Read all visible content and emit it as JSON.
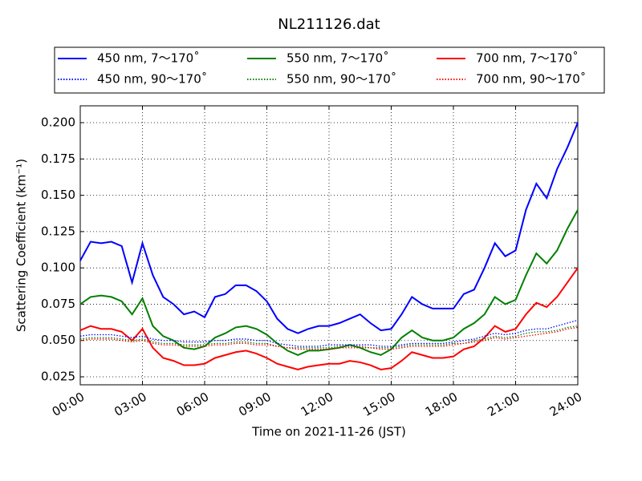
{
  "chart_data": {
    "type": "line",
    "title": "NL211126.dat",
    "x_label": "Time on 2021-11-26 (JST)",
    "y_label": "Scattering Coefficient (km⁻¹)",
    "x": [
      0,
      0.5,
      1,
      1.5,
      2,
      2.5,
      3,
      3.5,
      4,
      4.5,
      5,
      5.5,
      6,
      6.5,
      7,
      7.5,
      8,
      8.5,
      9,
      9.5,
      10,
      10.5,
      11,
      11.5,
      12,
      12.5,
      13,
      13.5,
      14,
      14.5,
      15,
      15.5,
      16,
      16.5,
      17,
      17.5,
      18,
      18.5,
      19,
      19.5,
      20,
      20.5,
      21,
      21.5,
      22,
      22.5,
      23,
      23.5,
      24
    ],
    "xlim": [
      0,
      24
    ],
    "xticks": [
      {
        "value": 0,
        "label": "00:00"
      },
      {
        "value": 3,
        "label": "03:00"
      },
      {
        "value": 6,
        "label": "06:00"
      },
      {
        "value": 9,
        "label": "09:00"
      },
      {
        "value": 12,
        "label": "12:00"
      },
      {
        "value": 15,
        "label": "15:00"
      },
      {
        "value": 18,
        "label": "18:00"
      },
      {
        "value": 21,
        "label": "21:00"
      },
      {
        "value": 24,
        "label": "24:00"
      }
    ],
    "ylim": [
      0.0195,
      0.2116
    ],
    "yticks": [
      0.025,
      {
        "value": 0.05,
        "label": "0.050"
      },
      0.075,
      {
        "value": 0.1,
        "label": "0.100"
      },
      0.125,
      {
        "value": 0.15,
        "label": "0.150"
      },
      0.175,
      {
        "value": 0.2,
        "label": "0.200"
      }
    ],
    "grid": true,
    "series": [
      {
        "name": "450 nm, 7～170˚",
        "color": "#0000ff",
        "linestyle": "solid",
        "values": [
          0.105,
          0.118,
          0.117,
          0.118,
          0.115,
          0.09,
          0.117,
          0.095,
          0.08,
          0.075,
          0.068,
          0.07,
          0.066,
          0.08,
          0.082,
          0.088,
          0.088,
          0.084,
          0.077,
          0.065,
          0.058,
          0.055,
          0.058,
          0.06,
          0.06,
          0.062,
          0.065,
          0.068,
          0.062,
          0.057,
          0.058,
          0.068,
          0.08,
          0.075,
          0.072,
          0.072,
          0.072,
          0.082,
          0.085,
          0.1,
          0.117,
          0.108,
          0.112,
          0.14,
          0.158,
          0.148,
          0.168,
          0.183,
          0.2
        ]
      },
      {
        "name": "450 nm, 90～170˚",
        "color": "#0000ff",
        "linestyle": "dotted",
        "values": [
          0.053,
          0.054,
          0.054,
          0.054,
          0.053,
          0.052,
          0.053,
          0.051,
          0.05,
          0.05,
          0.049,
          0.049,
          0.049,
          0.05,
          0.05,
          0.051,
          0.051,
          0.05,
          0.05,
          0.048,
          0.047,
          0.046,
          0.046,
          0.046,
          0.047,
          0.047,
          0.047,
          0.047,
          0.047,
          0.046,
          0.046,
          0.047,
          0.048,
          0.048,
          0.048,
          0.048,
          0.049,
          0.05,
          0.051,
          0.053,
          0.055,
          0.054,
          0.055,
          0.057,
          0.058,
          0.058,
          0.06,
          0.062,
          0.064
        ]
      },
      {
        "name": "550 nm, 7～170˚",
        "color": "#008000",
        "linestyle": "solid",
        "values": [
          0.075,
          0.08,
          0.081,
          0.08,
          0.077,
          0.068,
          0.079,
          0.06,
          0.053,
          0.05,
          0.045,
          0.044,
          0.046,
          0.052,
          0.055,
          0.059,
          0.06,
          0.058,
          0.054,
          0.048,
          0.043,
          0.04,
          0.043,
          0.043,
          0.044,
          0.045,
          0.047,
          0.045,
          0.042,
          0.04,
          0.044,
          0.052,
          0.057,
          0.052,
          0.05,
          0.05,
          0.052,
          0.058,
          0.062,
          0.068,
          0.08,
          0.075,
          0.078,
          0.095,
          0.11,
          0.103,
          0.112,
          0.127,
          0.14
        ]
      },
      {
        "name": "550 nm, 90～170˚",
        "color": "#008000",
        "linestyle": "dotted",
        "values": [
          0.051,
          0.052,
          0.052,
          0.052,
          0.051,
          0.05,
          0.051,
          0.049,
          0.048,
          0.048,
          0.047,
          0.047,
          0.047,
          0.048,
          0.048,
          0.049,
          0.049,
          0.048,
          0.048,
          0.046,
          0.045,
          0.045,
          0.045,
          0.045,
          0.045,
          0.046,
          0.046,
          0.046,
          0.045,
          0.045,
          0.045,
          0.046,
          0.047,
          0.047,
          0.047,
          0.047,
          0.048,
          0.048,
          0.05,
          0.051,
          0.053,
          0.052,
          0.053,
          0.055,
          0.056,
          0.056,
          0.057,
          0.059,
          0.06
        ]
      },
      {
        "name": "700 nm, 7～170˚",
        "color": "#ff0000",
        "linestyle": "solid",
        "values": [
          0.057,
          0.06,
          0.058,
          0.058,
          0.056,
          0.05,
          0.058,
          0.045,
          0.038,
          0.036,
          0.033,
          0.033,
          0.034,
          0.038,
          0.04,
          0.042,
          0.043,
          0.041,
          0.038,
          0.034,
          0.032,
          0.03,
          0.032,
          0.033,
          0.034,
          0.034,
          0.036,
          0.035,
          0.033,
          0.03,
          0.031,
          0.036,
          0.042,
          0.04,
          0.038,
          0.038,
          0.039,
          0.044,
          0.046,
          0.052,
          0.06,
          0.056,
          0.058,
          0.068,
          0.076,
          0.073,
          0.08,
          0.09,
          0.1
        ]
      },
      {
        "name": "700 nm, 90～170˚",
        "color": "#ff0000",
        "linestyle": "dotted",
        "values": [
          0.05,
          0.051,
          0.051,
          0.051,
          0.05,
          0.049,
          0.05,
          0.048,
          0.047,
          0.047,
          0.046,
          0.046,
          0.046,
          0.047,
          0.047,
          0.048,
          0.048,
          0.047,
          0.047,
          0.046,
          0.045,
          0.044,
          0.044,
          0.044,
          0.044,
          0.045,
          0.045,
          0.045,
          0.045,
          0.044,
          0.044,
          0.045,
          0.046,
          0.046,
          0.046,
          0.046,
          0.047,
          0.048,
          0.049,
          0.05,
          0.052,
          0.051,
          0.052,
          0.053,
          0.054,
          0.055,
          0.056,
          0.058,
          0.059
        ]
      }
    ]
  }
}
